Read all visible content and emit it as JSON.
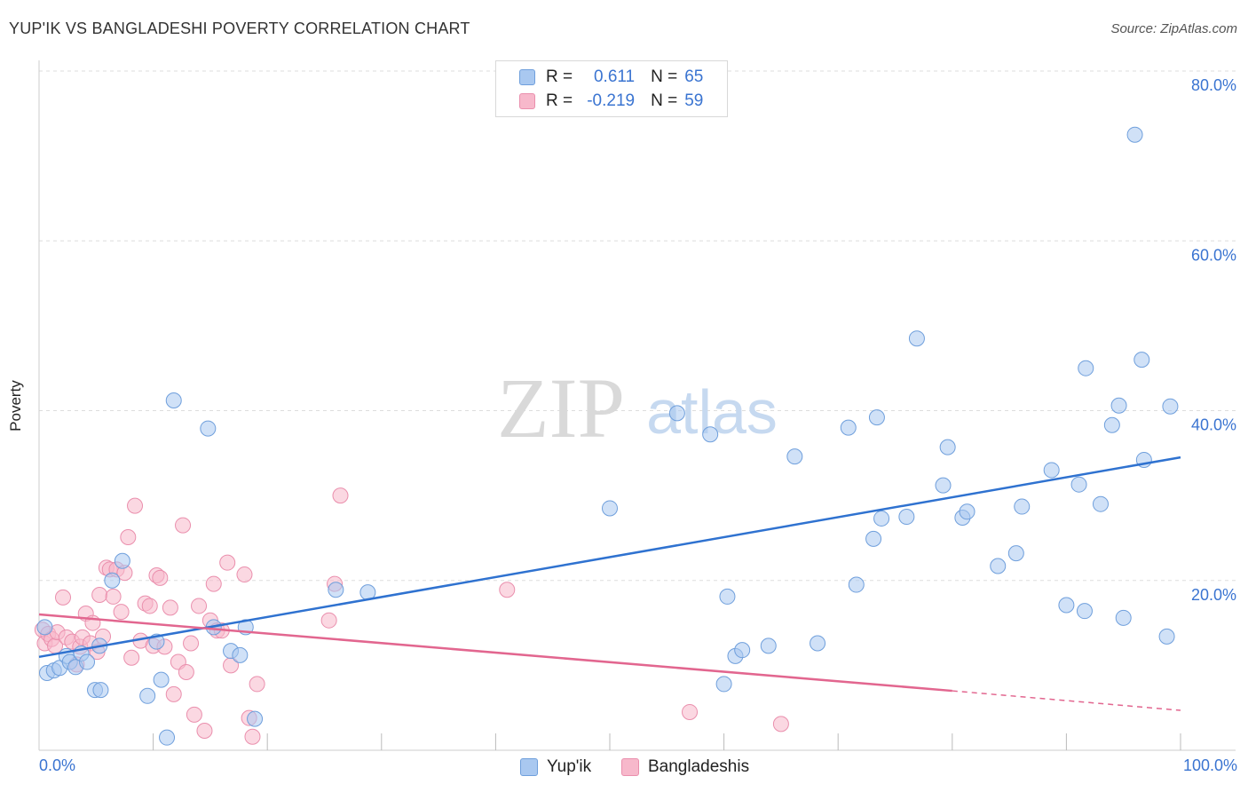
{
  "title": "YUP'IK VS BANGLADESHI POVERTY CORRELATION CHART",
  "source": "Source: ZipAtlas.com",
  "watermark": {
    "zip": "ZIP",
    "atlas": "atlas"
  },
  "legend": {
    "rows": [
      {
        "r_label": "R =",
        "r_value": "0.611",
        "n_label": "N =",
        "n_value": "65"
      },
      {
        "r_label": "R =",
        "r_value": "-0.219",
        "n_label": "N =",
        "n_value": "59"
      }
    ]
  },
  "bottom_legend": {
    "series1": "Yup'ik",
    "series2": "Bangladeshis"
  },
  "colors": {
    "yupik_fill": "#a9c8f0",
    "yupik_stroke": "#6f9fdc",
    "yupik_line": "#2f72d0",
    "bang_fill": "#f7b8cb",
    "bang_stroke": "#ea8fad",
    "bang_line": "#e2668f",
    "tick_text": "#3a74d1",
    "grid": "#dddddd"
  },
  "chart_data": {
    "type": "scatter",
    "title": "YUP'IK VS BANGLADESHI POVERTY CORRELATION CHART",
    "xlabel": "",
    "ylabel": "Poverty",
    "xlim": [
      0,
      100
    ],
    "ylim": [
      0,
      80
    ],
    "x_tick_labels": [
      "0.0%",
      "100.0%"
    ],
    "y_ticks": [
      20,
      40,
      60,
      80
    ],
    "y_tick_labels": [
      "20.0%",
      "40.0%",
      "60.0%",
      "80.0%"
    ],
    "grid": true,
    "legend_position": "top-center",
    "series": [
      {
        "name": "Yup'ik",
        "r": 0.611,
        "n": 65,
        "trend": {
          "x": [
            0,
            100
          ],
          "y": [
            11.0,
            34.5
          ]
        },
        "points": [
          [
            0.5,
            14.5
          ],
          [
            0.7,
            9.1
          ],
          [
            1.3,
            9.4
          ],
          [
            1.8,
            9.7
          ],
          [
            2.4,
            11.1
          ],
          [
            2.7,
            10.4
          ],
          [
            3.2,
            9.8
          ],
          [
            3.7,
            11.4
          ],
          [
            4.2,
            10.4
          ],
          [
            4.9,
            7.1
          ],
          [
            5.4,
            7.1
          ],
          [
            5.3,
            12.3
          ],
          [
            6.4,
            20.0
          ],
          [
            7.3,
            22.3
          ],
          [
            9.5,
            6.4
          ],
          [
            10.3,
            12.8
          ],
          [
            10.7,
            8.3
          ],
          [
            11.2,
            1.5
          ],
          [
            11.8,
            41.2
          ],
          [
            14.8,
            37.9
          ],
          [
            15.3,
            14.5
          ],
          [
            16.8,
            11.7
          ],
          [
            17.6,
            11.2
          ],
          [
            18.1,
            14.5
          ],
          [
            18.9,
            3.7
          ],
          [
            26.0,
            18.9
          ],
          [
            28.8,
            18.6
          ],
          [
            50.0,
            28.5
          ],
          [
            55.9,
            39.7
          ],
          [
            58.8,
            37.2
          ],
          [
            60.0,
            7.8
          ],
          [
            60.3,
            18.1
          ],
          [
            61.0,
            11.1
          ],
          [
            61.6,
            11.8
          ],
          [
            63.9,
            12.3
          ],
          [
            66.2,
            34.6
          ],
          [
            68.2,
            12.6
          ],
          [
            70.9,
            38.0
          ],
          [
            71.6,
            19.5
          ],
          [
            73.4,
            39.2
          ],
          [
            73.1,
            24.9
          ],
          [
            73.8,
            27.3
          ],
          [
            76.0,
            27.5
          ],
          [
            76.9,
            48.5
          ],
          [
            79.2,
            31.2
          ],
          [
            79.6,
            35.7
          ],
          [
            80.9,
            27.4
          ],
          [
            81.3,
            28.1
          ],
          [
            84.0,
            21.7
          ],
          [
            85.6,
            23.2
          ],
          [
            86.1,
            28.7
          ],
          [
            88.7,
            33.0
          ],
          [
            90.0,
            17.1
          ],
          [
            91.1,
            31.3
          ],
          [
            91.7,
            45.0
          ],
          [
            91.6,
            16.4
          ],
          [
            93.0,
            29.0
          ],
          [
            94.0,
            38.3
          ],
          [
            95.0,
            15.6
          ],
          [
            94.6,
            40.6
          ],
          [
            96.0,
            72.5
          ],
          [
            96.6,
            46.0
          ],
          [
            96.8,
            34.2
          ],
          [
            98.8,
            13.4
          ],
          [
            99.1,
            40.5
          ]
        ]
      },
      {
        "name": "Bangladeshis",
        "r": -0.219,
        "n": 59,
        "trend": {
          "x": [
            0,
            80
          ],
          "y": [
            16.0,
            7.0
          ],
          "dashed_to": {
            "x": 100,
            "y": 4.7
          }
        },
        "points": [
          [
            0.3,
            14.2
          ],
          [
            0.5,
            12.6
          ],
          [
            0.8,
            13.7
          ],
          [
            1.1,
            13.1
          ],
          [
            1.4,
            12.3
          ],
          [
            1.6,
            13.9
          ],
          [
            2.1,
            18.0
          ],
          [
            2.4,
            13.3
          ],
          [
            2.9,
            12.8
          ],
          [
            3.3,
            10.1
          ],
          [
            3.6,
            12.2
          ],
          [
            3.8,
            13.3
          ],
          [
            4.1,
            16.1
          ],
          [
            4.5,
            12.6
          ],
          [
            4.7,
            15.0
          ],
          [
            5.1,
            11.6
          ],
          [
            5.3,
            18.3
          ],
          [
            5.6,
            13.4
          ],
          [
            5.9,
            21.5
          ],
          [
            6.2,
            21.3
          ],
          [
            6.5,
            18.1
          ],
          [
            6.8,
            21.3
          ],
          [
            7.2,
            16.3
          ],
          [
            7.5,
            20.9
          ],
          [
            7.8,
            25.1
          ],
          [
            8.1,
            10.9
          ],
          [
            8.4,
            28.8
          ],
          [
            8.9,
            12.9
          ],
          [
            9.3,
            17.3
          ],
          [
            9.7,
            17.0
          ],
          [
            10.0,
            12.3
          ],
          [
            10.3,
            20.6
          ],
          [
            10.6,
            20.3
          ],
          [
            11.0,
            12.2
          ],
          [
            11.5,
            16.8
          ],
          [
            11.8,
            6.6
          ],
          [
            12.2,
            10.4
          ],
          [
            12.6,
            26.5
          ],
          [
            12.9,
            9.2
          ],
          [
            13.3,
            12.6
          ],
          [
            13.6,
            4.2
          ],
          [
            14.0,
            17.0
          ],
          [
            14.5,
            2.3
          ],
          [
            15.0,
            15.3
          ],
          [
            15.3,
            19.6
          ],
          [
            15.6,
            14.1
          ],
          [
            16.0,
            14.1
          ],
          [
            16.5,
            22.1
          ],
          [
            16.8,
            10.0
          ],
          [
            18.0,
            20.7
          ],
          [
            18.4,
            3.8
          ],
          [
            18.7,
            1.6
          ],
          [
            19.1,
            7.8
          ],
          [
            25.4,
            15.3
          ],
          [
            25.9,
            19.6
          ],
          [
            26.4,
            30.0
          ],
          [
            41.0,
            18.9
          ],
          [
            57.0,
            4.5
          ],
          [
            65.0,
            3.1
          ]
        ]
      }
    ]
  }
}
